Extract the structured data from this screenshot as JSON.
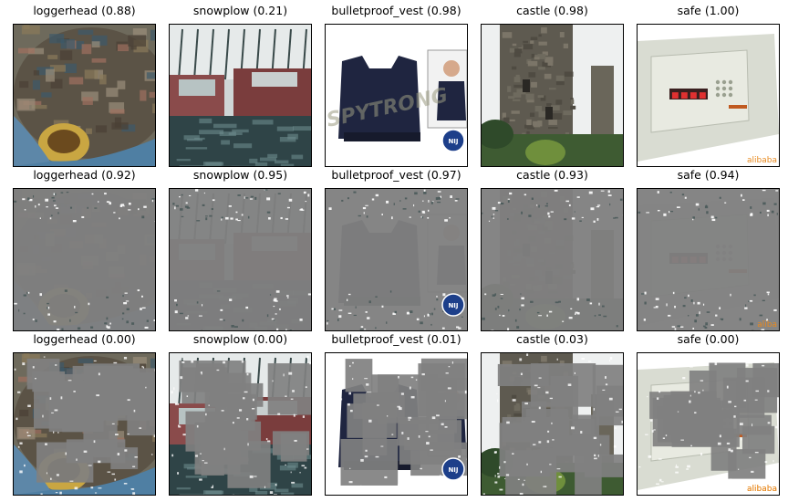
{
  "grid": {
    "rows": [
      {
        "cells": [
          {
            "label": "loggerhead (0.88)",
            "image": "loggerhead-turtle-photo",
            "variant": "original"
          },
          {
            "label": "snowplow (0.21)",
            "image": "snowplow-trucks-photo",
            "variant": "original"
          },
          {
            "label": "bulletproof_vest (0.98)",
            "image": "bulletproof-vest-photo",
            "variant": "original",
            "overlay_text": "SPYTRONG",
            "badge_text": "NIJ"
          },
          {
            "label": "castle (0.98)",
            "image": "castle-tower-photo",
            "variant": "original"
          },
          {
            "label": "safe (1.00)",
            "image": "safe-photo",
            "variant": "original",
            "overlay_text": "alibaba"
          }
        ]
      },
      {
        "cells": [
          {
            "label": "loggerhead (0.92)",
            "image": "loggerhead-turtle-photo",
            "variant": "masked-heavy"
          },
          {
            "label": "snowplow (0.95)",
            "image": "snowplow-trucks-photo",
            "variant": "masked-heavy"
          },
          {
            "label": "bulletproof_vest (0.97)",
            "image": "bulletproof-vest-photo",
            "variant": "masked-heavy",
            "badge_text": "NIJ"
          },
          {
            "label": "castle (0.93)",
            "image": "castle-tower-photo",
            "variant": "masked-heavy"
          },
          {
            "label": "safe (0.94)",
            "image": "safe-photo",
            "variant": "masked-heavy",
            "overlay_text": "aliba"
          }
        ]
      },
      {
        "cells": [
          {
            "label": "loggerhead (0.00)",
            "image": "loggerhead-turtle-photo",
            "variant": "masked-partial"
          },
          {
            "label": "snowplow (0.00)",
            "image": "snowplow-trucks-photo",
            "variant": "masked-partial"
          },
          {
            "label": "bulletproof_vest (0.01)",
            "image": "bulletproof-vest-photo",
            "variant": "masked-partial",
            "badge_text": "NIJ"
          },
          {
            "label": "castle (0.03)",
            "image": "castle-tower-photo",
            "variant": "masked-partial"
          },
          {
            "label": "safe (0.00)",
            "image": "safe-photo",
            "variant": "masked-partial",
            "overlay_text": "alibaba"
          }
        ]
      }
    ]
  },
  "colors": {
    "mask_gray": "#808080",
    "frame_border": "#000000",
    "background": "#ffffff"
  }
}
